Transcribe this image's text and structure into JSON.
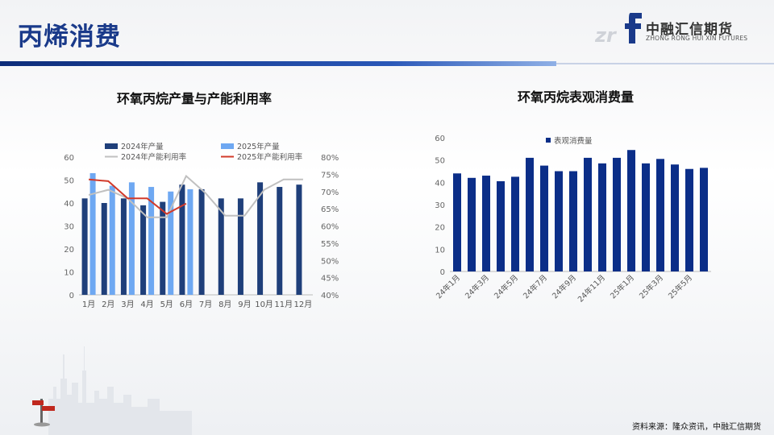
{
  "page": {
    "title": "丙烯消费",
    "source": "资料来源：隆众资讯，中融汇信期货",
    "logo": {
      "mark": "zrf",
      "cn": "中融汇信期货",
      "en": "ZHONG RONG HUI XIN FUTURES"
    }
  },
  "colors": {
    "title": "#1a3a8a",
    "bar_2024": "#1f3f7a",
    "bar_2025": "#6ea8f2",
    "line_2024": "#c0c0c0",
    "line_2025": "#d23a2a",
    "bar_consumption": "#0b2e88"
  },
  "chart_data": [
    {
      "type": "bar",
      "title": "环氧丙烷产量与产能利用率",
      "categories": [
        "1月",
        "2月",
        "3月",
        "4月",
        "5月",
        "6月",
        "7月",
        "8月",
        "9月",
        "10月",
        "11月",
        "12月"
      ],
      "series": [
        {
          "name": "2024年产量",
          "axis": "left",
          "kind": "bar",
          "values": [
            42,
            40,
            42,
            39,
            40.5,
            48,
            46,
            42,
            42,
            49,
            47,
            48
          ]
        },
        {
          "name": "2025年产量",
          "axis": "left",
          "kind": "bar",
          "values": [
            53,
            47.5,
            49,
            47,
            45,
            46,
            null,
            null,
            null,
            null,
            null,
            null
          ]
        },
        {
          "name": "2024年产能利用率",
          "axis": "right",
          "kind": "line",
          "values": [
            69,
            70.5,
            68,
            62.5,
            62.5,
            74.5,
            69.5,
            63,
            63,
            70.5,
            73.5,
            73.5
          ]
        },
        {
          "name": "2025年产能利用率",
          "axis": "right",
          "kind": "line",
          "values": [
            73.5,
            73,
            68,
            68,
            63.5,
            66.5,
            null,
            null,
            null,
            null,
            null,
            null
          ]
        }
      ],
      "ylim": [
        0,
        60
      ],
      "yticks": [
        "0",
        "10",
        "20",
        "30",
        "40",
        "50",
        "60"
      ],
      "y2lim": [
        40,
        80
      ],
      "y2ticks": [
        "40%",
        "45%",
        "50%",
        "55%",
        "60%",
        "65%",
        "70%",
        "75%",
        "80%"
      ],
      "legend": "top-right",
      "grid": false
    },
    {
      "type": "bar",
      "title": "环氧丙烷表观消费量",
      "categories": [
        "24年1月",
        "24年2月",
        "24年3月",
        "24年4月",
        "24年5月",
        "24年6月",
        "24年7月",
        "24年8月",
        "24年9月",
        "24年10月",
        "24年11月",
        "24年12月",
        "25年1月",
        "25年2月",
        "25年3月",
        "25年4月",
        "25年5月",
        "25年6月"
      ],
      "tick_labels": [
        "24年1月",
        "",
        "24年3月",
        "",
        "24年5月",
        "",
        "24年7月",
        "",
        "24年9月",
        "",
        "24年11月",
        "",
        "25年1月",
        "",
        "25年3月",
        "",
        "25年5月",
        ""
      ],
      "series": [
        {
          "name": "表观消费量",
          "values": [
            44,
            42,
            43,
            40.5,
            42.5,
            51,
            47.5,
            45,
            45,
            51,
            48.5,
            51,
            54.5,
            48.5,
            50.5,
            48,
            46,
            46.5
          ]
        }
      ],
      "ylim": [
        0,
        60
      ],
      "yticks": [
        "0",
        "10",
        "20",
        "30",
        "40",
        "50",
        "60"
      ],
      "legend": "top-left",
      "grid": false
    }
  ]
}
